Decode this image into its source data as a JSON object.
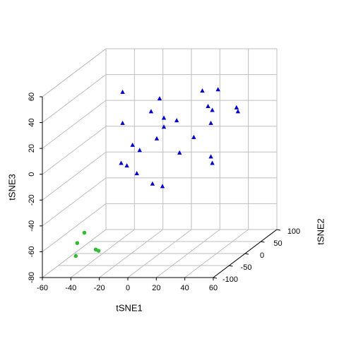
{
  "chart_data": {
    "type": "scatter3d",
    "x_label": "tSNE1",
    "y_label": "tSNE2",
    "z_label": "tSNE3",
    "xlim": [
      -60,
      60
    ],
    "ylim": [
      -100,
      100
    ],
    "zlim": [
      -80,
      60
    ],
    "xticks": [
      -60,
      -40,
      -20,
      0,
      20,
      40,
      60
    ],
    "yticks": [
      -100,
      -50,
      0,
      50,
      100
    ],
    "zticks": [
      -80,
      -60,
      -40,
      -20,
      0,
      20,
      40,
      60
    ],
    "grid": true,
    "series": [
      {
        "color": "#0000cd",
        "marker": "triangle",
        "x": [
          -26,
          0,
          -6,
          3,
          12,
          -26,
          3,
          -2,
          -19,
          -14,
          14,
          -27,
          -23,
          -16,
          -5,
          2,
          30,
          41,
          34,
          37,
          54,
          55,
          36,
          24,
          36,
          37
        ],
        "y": [
          0,
          0,
          0,
          0,
          0,
          0,
          0,
          0,
          0,
          0,
          0,
          0,
          0,
          0,
          0,
          0,
          0,
          0,
          0,
          0,
          0,
          0,
          0,
          0,
          0,
          0
        ],
        "z": [
          45,
          40,
          30,
          25,
          23,
          21,
          18,
          9,
          4,
          0,
          -2,
          -10,
          -12,
          -18,
          -26,
          -28,
          46,
          47,
          34,
          31,
          33,
          30,
          21,
          10,
          -5,
          -10
        ]
      },
      {
        "color": "#33bb33",
        "marker": "circle",
        "x": [
          -35,
          -40,
          -27,
          -25,
          -41
        ],
        "y": [
          -80,
          -80,
          -80,
          -80,
          -80
        ],
        "z": [
          -49,
          -57,
          -62,
          -63,
          -67
        ]
      }
    ]
  }
}
